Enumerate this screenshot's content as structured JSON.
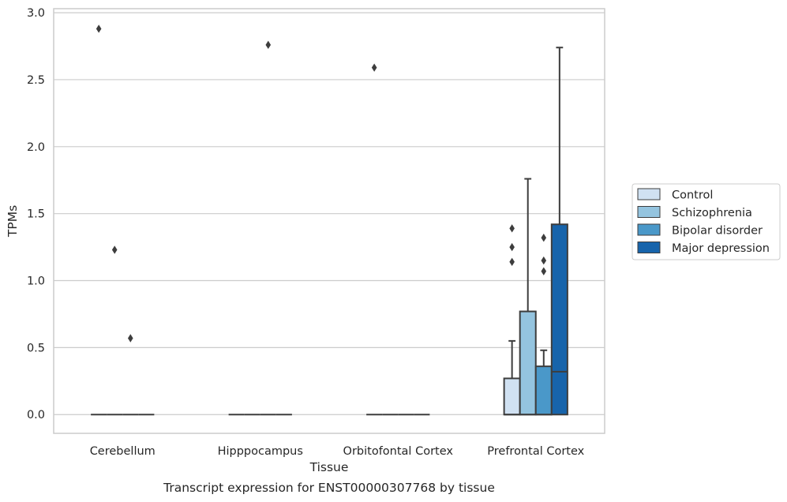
{
  "caption": "Transcript expression for ENST00000307768 by tissue",
  "chart_data": {
    "type": "box",
    "title": "",
    "xlabel": "Tissue",
    "ylabel": "TPMs",
    "ylim": [
      -0.14,
      3.03
    ],
    "yticks": [
      0.0,
      0.5,
      1.0,
      1.5,
      2.0,
      2.5,
      3.0
    ],
    "ytick_labels": [
      "0.0",
      "0.5",
      "1.0",
      "1.5",
      "2.0",
      "2.5",
      "3.0"
    ],
    "grid": "horizontal",
    "legend_position": "right",
    "categories": [
      "Cerebellum",
      "Hipppocampus",
      "Orbitofontal Cortex",
      "Prefrontal Cortex"
    ],
    "series": [
      {
        "name": "Control",
        "color": "#d0e1f2",
        "boxes": [
          {
            "q1": 0,
            "median": 0,
            "q3": 0,
            "whisker_low": 0,
            "whisker_high": 0,
            "outliers": [
              2.88
            ]
          },
          {
            "q1": 0,
            "median": 0,
            "q3": 0,
            "whisker_low": 0,
            "whisker_high": 0,
            "outliers": []
          },
          {
            "q1": 0,
            "median": 0,
            "q3": 0,
            "whisker_low": 0,
            "whisker_high": 0,
            "outliers": [
              2.59
            ]
          },
          {
            "q1": 0,
            "median": 0,
            "q3": 0.27,
            "whisker_low": 0,
            "whisker_high": 0.55,
            "outliers": [
              1.14,
              1.25,
              1.39
            ]
          }
        ]
      },
      {
        "name": "Schizophrenia",
        "color": "#94c4df",
        "boxes": [
          {
            "q1": 0,
            "median": 0,
            "q3": 0,
            "whisker_low": 0,
            "whisker_high": 0,
            "outliers": [
              1.23
            ]
          },
          {
            "q1": 0,
            "median": 0,
            "q3": 0,
            "whisker_low": 0,
            "whisker_high": 0,
            "outliers": []
          },
          {
            "q1": 0,
            "median": 0,
            "q3": 0,
            "whisker_low": 0,
            "whisker_high": 0,
            "outliers": []
          },
          {
            "q1": 0,
            "median": 0,
            "q3": 0.77,
            "whisker_low": 0,
            "whisker_high": 1.76,
            "outliers": []
          }
        ]
      },
      {
        "name": "Bipolar disorder",
        "color": "#4a98c9",
        "boxes": [
          {
            "q1": 0,
            "median": 0,
            "q3": 0,
            "whisker_low": 0,
            "whisker_high": 0,
            "outliers": [
              0.57
            ]
          },
          {
            "q1": 0,
            "median": 0,
            "q3": 0,
            "whisker_low": 0,
            "whisker_high": 0,
            "outliers": [
              2.76
            ]
          },
          {
            "q1": 0,
            "median": 0,
            "q3": 0,
            "whisker_low": 0,
            "whisker_high": 0,
            "outliers": []
          },
          {
            "q1": 0,
            "median": 0,
            "q3": 0.36,
            "whisker_low": 0,
            "whisker_high": 0.48,
            "outliers": [
              1.07,
              1.15,
              1.32
            ]
          }
        ]
      },
      {
        "name": "Major depression",
        "color": "#1764ab",
        "boxes": [
          {
            "q1": 0,
            "median": 0,
            "q3": 0,
            "whisker_low": 0,
            "whisker_high": 0,
            "outliers": []
          },
          {
            "q1": 0,
            "median": 0,
            "q3": 0,
            "whisker_low": 0,
            "whisker_high": 0,
            "outliers": []
          },
          {
            "q1": 0,
            "median": 0,
            "q3": 0,
            "whisker_low": 0,
            "whisker_high": 0,
            "outliers": []
          },
          {
            "q1": 0,
            "median": 0.32,
            "q3": 1.42,
            "whisker_low": 0,
            "whisker_high": 2.74,
            "outliers": []
          }
        ]
      }
    ]
  }
}
